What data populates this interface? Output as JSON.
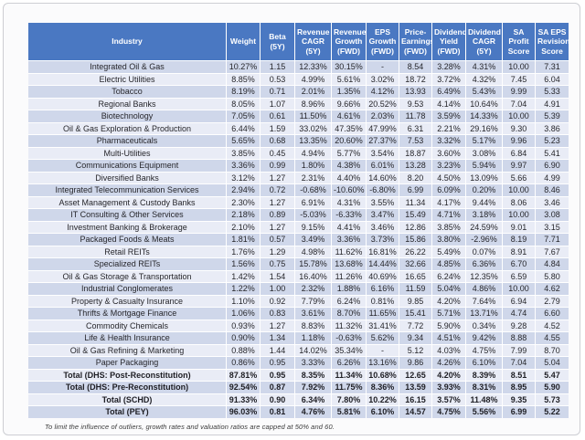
{
  "chart_data": {
    "type": "table",
    "columns": [
      "Industry",
      "Weight",
      "Beta (5Y)",
      "Revenue CAGR (5Y)",
      "Revenue Growth (FWD)",
      "EPS Growth (FWD)",
      "Price-Earnings (FWD)",
      "Dividend Yield (FWD)",
      "Dividend CAGR (5Y)",
      "SA Profit Score",
      "SA EPS Revision Score"
    ],
    "rows": [
      {
        "is_total": false,
        "cells": [
          "Integrated Oil & Gas",
          "10.27%",
          "1.15",
          "12.33%",
          "30.15%",
          "-",
          "8.54",
          "3.28%",
          "4.31%",
          "10.00",
          "7.31"
        ]
      },
      {
        "is_total": false,
        "cells": [
          "Electric Utilities",
          "8.85%",
          "0.53",
          "4.99%",
          "5.61%",
          "3.02%",
          "18.72",
          "3.72%",
          "4.32%",
          "7.45",
          "6.04"
        ]
      },
      {
        "is_total": false,
        "cells": [
          "Tobacco",
          "8.19%",
          "0.71",
          "2.01%",
          "1.35%",
          "4.12%",
          "13.93",
          "6.49%",
          "5.43%",
          "9.99",
          "5.33"
        ]
      },
      {
        "is_total": false,
        "cells": [
          "Regional Banks",
          "8.05%",
          "1.07",
          "8.96%",
          "9.66%",
          "20.52%",
          "9.53",
          "4.14%",
          "10.64%",
          "7.04",
          "4.91"
        ]
      },
      {
        "is_total": false,
        "cells": [
          "Biotechnology",
          "7.05%",
          "0.61",
          "11.50%",
          "4.61%",
          "2.03%",
          "11.78",
          "3.59%",
          "14.33%",
          "10.00",
          "5.39"
        ]
      },
      {
        "is_total": false,
        "cells": [
          "Oil & Gas Exploration & Production",
          "6.44%",
          "1.59",
          "33.02%",
          "47.35%",
          "47.99%",
          "6.31",
          "2.21%",
          "29.16%",
          "9.30",
          "3.86"
        ]
      },
      {
        "is_total": false,
        "cells": [
          "Pharmaceuticals",
          "5.65%",
          "0.68",
          "13.35%",
          "20.60%",
          "27.37%",
          "7.53",
          "3.32%",
          "5.17%",
          "9.96",
          "5.23"
        ]
      },
      {
        "is_total": false,
        "cells": [
          "Multi-Utilities",
          "3.85%",
          "0.45",
          "4.94%",
          "5.77%",
          "3.54%",
          "18.87",
          "3.60%",
          "3.08%",
          "6.84",
          "5.41"
        ]
      },
      {
        "is_total": false,
        "cells": [
          "Communications Equipment",
          "3.36%",
          "0.99",
          "1.80%",
          "4.38%",
          "6.01%",
          "13.28",
          "3.23%",
          "5.94%",
          "9.97",
          "6.90"
        ]
      },
      {
        "is_total": false,
        "cells": [
          "Diversified Banks",
          "3.12%",
          "1.27",
          "2.31%",
          "4.40%",
          "14.60%",
          "8.20",
          "4.50%",
          "13.09%",
          "5.66",
          "4.99"
        ]
      },
      {
        "is_total": false,
        "cells": [
          "Integrated Telecommunication Services",
          "2.94%",
          "0.72",
          "-0.68%",
          "-10.60%",
          "-6.80%",
          "6.99",
          "6.09%",
          "0.20%",
          "10.00",
          "8.46"
        ]
      },
      {
        "is_total": false,
        "cells": [
          "Asset Management & Custody Banks",
          "2.30%",
          "1.27",
          "6.91%",
          "4.31%",
          "3.55%",
          "11.34",
          "4.17%",
          "9.44%",
          "8.06",
          "3.46"
        ]
      },
      {
        "is_total": false,
        "cells": [
          "IT Consulting & Other Services",
          "2.18%",
          "0.89",
          "-5.03%",
          "-6.33%",
          "3.47%",
          "15.49",
          "4.71%",
          "3.18%",
          "10.00",
          "3.08"
        ]
      },
      {
        "is_total": false,
        "cells": [
          "Investment Banking & Brokerage",
          "2.10%",
          "1.27",
          "9.15%",
          "4.41%",
          "3.46%",
          "12.86",
          "3.85%",
          "24.59%",
          "9.01",
          "3.15"
        ]
      },
      {
        "is_total": false,
        "cells": [
          "Packaged Foods & Meats",
          "1.81%",
          "0.57",
          "3.49%",
          "3.36%",
          "3.73%",
          "15.86",
          "3.80%",
          "-2.96%",
          "8.19",
          "7.71"
        ]
      },
      {
        "is_total": false,
        "cells": [
          "Retail REITs",
          "1.76%",
          "1.29",
          "4.98%",
          "11.62%",
          "16.81%",
          "26.22",
          "5.49%",
          "0.07%",
          "8.91",
          "7.67"
        ]
      },
      {
        "is_total": false,
        "cells": [
          "Specialized REITs",
          "1.56%",
          "0.75",
          "15.78%",
          "13.68%",
          "14.44%",
          "32.66",
          "4.85%",
          "6.36%",
          "6.70",
          "4.84"
        ]
      },
      {
        "is_total": false,
        "cells": [
          "Oil & Gas Storage & Transportation",
          "1.42%",
          "1.54",
          "16.40%",
          "11.26%",
          "40.69%",
          "16.65",
          "6.24%",
          "12.35%",
          "6.59",
          "5.80"
        ]
      },
      {
        "is_total": false,
        "cells": [
          "Industrial Conglomerates",
          "1.22%",
          "1.00",
          "2.32%",
          "1.88%",
          "6.16%",
          "11.59",
          "5.04%",
          "4.86%",
          "10.00",
          "4.62"
        ]
      },
      {
        "is_total": false,
        "cells": [
          "Property & Casualty Insurance",
          "1.10%",
          "0.92",
          "7.79%",
          "6.24%",
          "0.81%",
          "9.85",
          "4.20%",
          "7.64%",
          "6.94",
          "2.79"
        ]
      },
      {
        "is_total": false,
        "cells": [
          "Thrifts & Mortgage Finance",
          "1.06%",
          "0.83",
          "3.61%",
          "8.70%",
          "11.65%",
          "15.41",
          "5.71%",
          "13.71%",
          "4.74",
          "6.60"
        ]
      },
      {
        "is_total": false,
        "cells": [
          "Commodity Chemicals",
          "0.93%",
          "1.27",
          "8.83%",
          "11.32%",
          "31.41%",
          "7.72",
          "5.90%",
          "0.34%",
          "9.28",
          "4.52"
        ]
      },
      {
        "is_total": false,
        "cells": [
          "Life & Health Insurance",
          "0.90%",
          "1.34",
          "1.18%",
          "-0.63%",
          "5.62%",
          "9.34",
          "4.51%",
          "9.42%",
          "8.88",
          "4.55"
        ]
      },
      {
        "is_total": false,
        "cells": [
          "Oil & Gas Refining & Marketing",
          "0.88%",
          "1.44",
          "14.02%",
          "35.34%",
          "-",
          "5.12",
          "4.03%",
          "4.75%",
          "7.99",
          "8.70"
        ]
      },
      {
        "is_total": false,
        "cells": [
          "Paper Packaging",
          "0.86%",
          "0.95",
          "3.33%",
          "6.26%",
          "13.16%",
          "9.86",
          "4.26%",
          "6.10%",
          "7.04",
          "5.04"
        ]
      },
      {
        "is_total": true,
        "cells": [
          "Total (DHS: Post-Reconstitution)",
          "87.81%",
          "0.95",
          "8.35%",
          "11.34%",
          "10.68%",
          "12.65",
          "4.20%",
          "8.39%",
          "8.51",
          "5.47"
        ]
      },
      {
        "is_total": true,
        "cells": [
          "Total (DHS: Pre-Reconstitution)",
          "92.54%",
          "0.87",
          "7.92%",
          "11.75%",
          "8.36%",
          "13.59",
          "3.93%",
          "8.31%",
          "8.95",
          "5.90"
        ]
      },
      {
        "is_total": true,
        "cells": [
          "Total (SCHD)",
          "91.33%",
          "0.90",
          "6.34%",
          "7.80%",
          "10.22%",
          "16.15",
          "3.57%",
          "11.48%",
          "9.35",
          "5.73"
        ]
      },
      {
        "is_total": true,
        "cells": [
          "Total (PEY)",
          "96.03%",
          "0.81",
          "4.76%",
          "5.81%",
          "6.10%",
          "14.57",
          "4.75%",
          "5.56%",
          "6.99",
          "5.22"
        ]
      }
    ],
    "footnote": "To limit the influence of outliers, growth rates and valuation ratios are capped at 50% and 60.",
    "colors": {
      "header_bg": "#4a78c2",
      "band_dark": "#cfd7ea",
      "band_light": "#e9ecf6"
    }
  }
}
